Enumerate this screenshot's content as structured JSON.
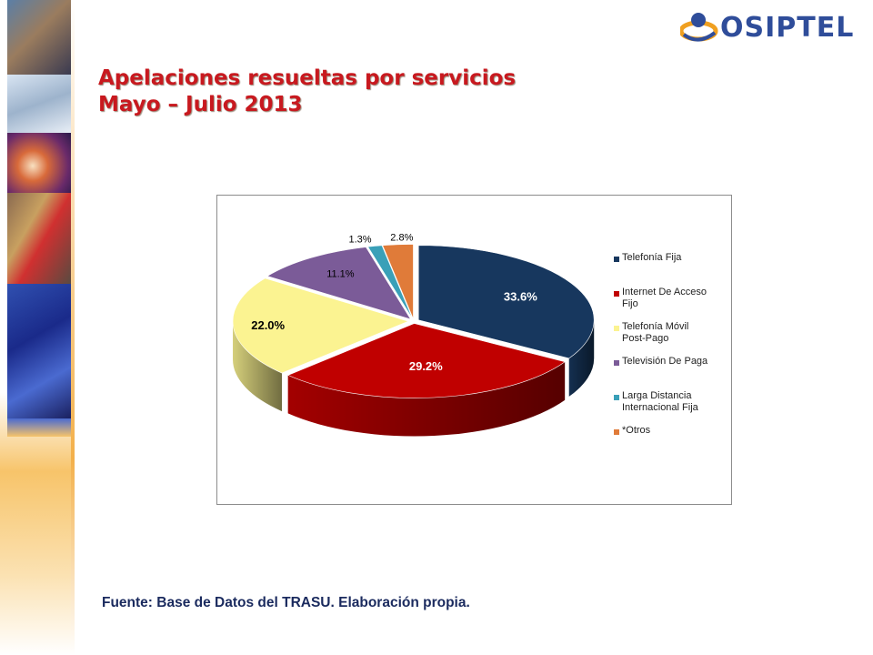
{
  "slide": {
    "title_line1": "Apelaciones resueltas por servicios",
    "title_line2": "Mayo – Julio 2013",
    "logo_text": "OSIPTEL",
    "source": "Fuente: Base de Datos del TRASU. Elaboración propia."
  },
  "chart_data": {
    "type": "pie",
    "style": "3d-exploded",
    "legend_position": "right",
    "slices": [
      {
        "label": "Telefonía Fija",
        "value": 33.6,
        "display": "33.6%",
        "color": "#17375e",
        "label_color": "#ffffff",
        "label_bold": true
      },
      {
        "label": "Internet De Acceso Fijo",
        "value": 29.2,
        "display": "29.2%",
        "color": "#c00000",
        "label_color": "#ffffff",
        "label_bold": true
      },
      {
        "label": "Telefonía Móvil Post-Pago",
        "value": 22.0,
        "display": "22.0%",
        "color": "#fbf391",
        "label_color": "#000000",
        "label_bold": true
      },
      {
        "label": "Televisión De Paga",
        "value": 11.1,
        "display": "11.1%",
        "color": "#7b5b98",
        "label_color": "#000000",
        "label_bold": false
      },
      {
        "label": "Larga Distancia Internacional Fija",
        "value": 1.3,
        "display": "1.3%",
        "color": "#3aa0b8",
        "label_color": "#000000",
        "label_bold": false
      },
      {
        "label": "*Otros",
        "value": 2.8,
        "display": "2.8%",
        "color": "#e07b39",
        "label_color": "#000000",
        "label_bold": false
      }
    ],
    "legend": [
      {
        "lines": [
          "Telefonía Fija"
        ]
      },
      {
        "lines": [
          "Internet De Acceso",
          "Fijo"
        ]
      },
      {
        "lines": [
          "Telefonía Móvil",
          "Post-Pago"
        ]
      },
      {
        "lines": [
          "Televisión De Paga"
        ]
      },
      {
        "lines": [
          "Larga Distancia",
          "Internacional Fija"
        ]
      },
      {
        "lines": [
          "*Otros"
        ]
      }
    ]
  }
}
